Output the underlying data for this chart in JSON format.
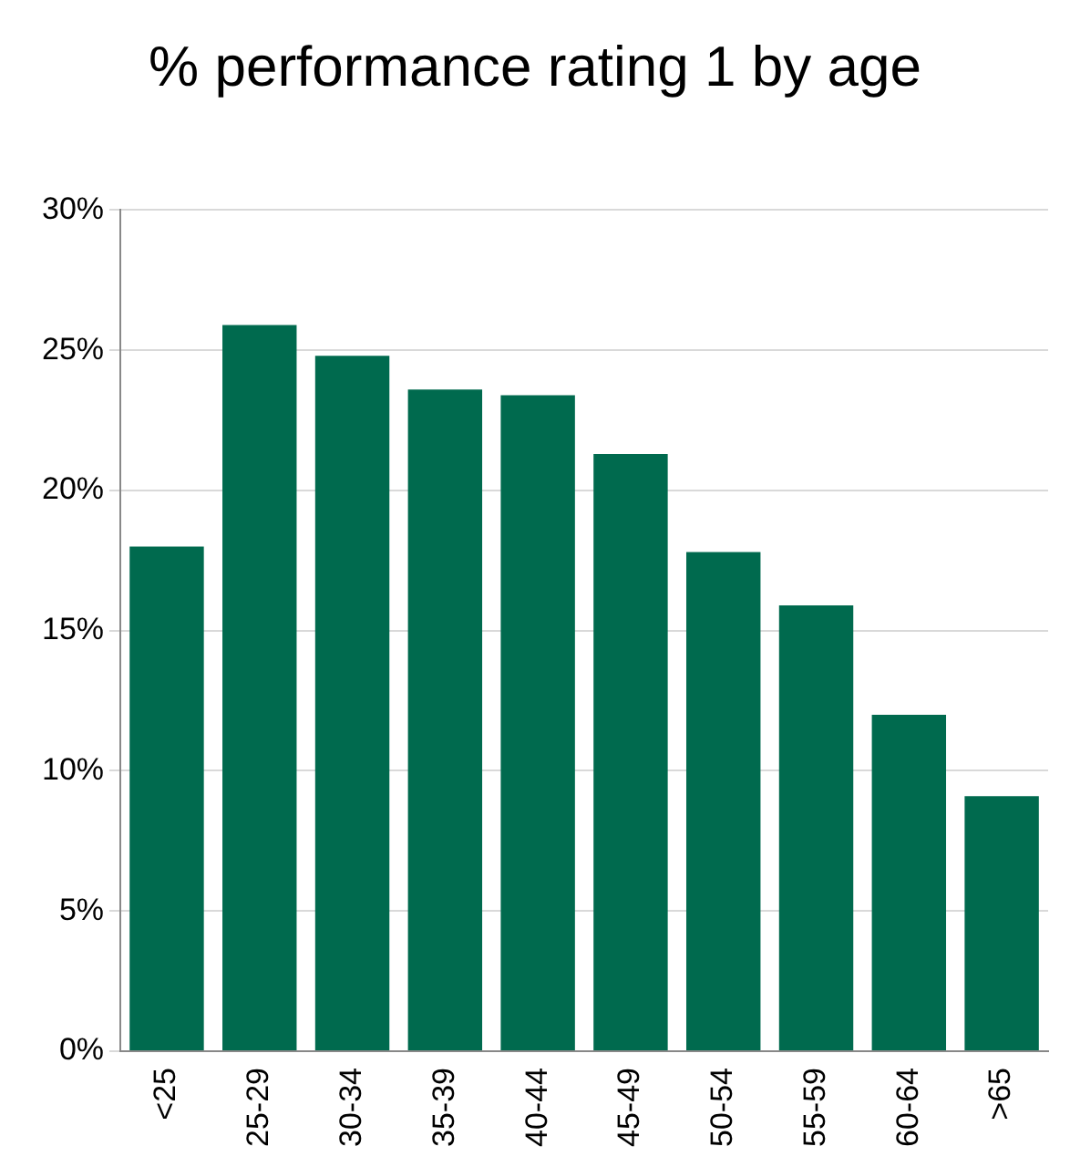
{
  "chart_data": {
    "type": "bar",
    "title": "% performance rating 1 by age",
    "categories": [
      "<25",
      "25-29",
      "30-34",
      "35-39",
      "40-44",
      "45-49",
      "50-54",
      "55-59",
      "60-64",
      ">65"
    ],
    "values": [
      18,
      25.9,
      24.8,
      23.6,
      23.4,
      21.3,
      17.8,
      15.9,
      12,
      9.1
    ],
    "color": "#006a4e",
    "ylim": [
      0,
      30
    ],
    "yticks": [
      {
        "value": 0,
        "label": "0%"
      },
      {
        "value": 5,
        "label": "5%"
      },
      {
        "value": 10,
        "label": "10%"
      },
      {
        "value": 15,
        "label": "15%"
      },
      {
        "value": 20,
        "label": "20%"
      },
      {
        "value": 25,
        "label": "25%"
      },
      {
        "value": 30,
        "label": "30%"
      }
    ],
    "grid": "y",
    "legend": false
  }
}
